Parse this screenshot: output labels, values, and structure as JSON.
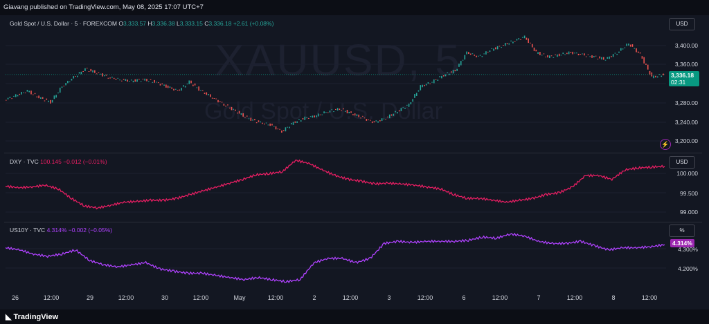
{
  "header": {
    "publisher_text": "Giavang published on TradingView.com, May 08, 2025 17:07 UTC+7"
  },
  "watermark": {
    "symbol": "XAUUSD, 5",
    "description": "Gold Spot / U.S. Dollar"
  },
  "panes": {
    "gold": {
      "title": "Gold Spot / U.S. Dollar · 5 · FOREXCOM",
      "o_label": "O",
      "o_value": "3,333.57",
      "h_label": "H",
      "h_value": "3,336.38",
      "l_label": "L",
      "l_value": "3,333.15",
      "c_label": "C",
      "c_value": "3,336.18",
      "change": "+2.61 (+0.08%)",
      "unit": "USD",
      "last_price": "3,336.18",
      "countdown": "02:31",
      "scale_labels": [
        "3,400.00",
        "3,360.00",
        "3,280.00",
        "3,240.00",
        "3,200.00"
      ]
    },
    "dxy": {
      "title": "DXY · TVC",
      "value": "100.145",
      "change": "−0.012 (−0.01%)",
      "unit": "USD",
      "scale_labels": [
        "100.000",
        "99.500",
        "99.000"
      ]
    },
    "us10y": {
      "title": "US10Y · TVC",
      "value": "4.314%",
      "change": "−0.002 (−0.05%)",
      "unit": "%",
      "last_value": "4.314%",
      "scale_labels": [
        "4.300%",
        "4.200%"
      ]
    }
  },
  "time_axis": [
    "26",
    "12:00",
    "29",
    "12:00",
    "30",
    "12:00",
    "May",
    "12:00",
    "2",
    "12:00",
    "3",
    "12:00",
    "6",
    "12:00",
    "7",
    "12:00",
    "8",
    "12:00"
  ],
  "footer": {
    "brand": "TradingView"
  },
  "colors": {
    "background": "#131722",
    "up": "#26a69a",
    "down": "#ef5350",
    "dxy_line": "#e91e63",
    "us10y_line": "#b042ff",
    "last_price_tag": "#089981"
  },
  "chart_data": [
    {
      "type": "line",
      "title": "Gold Spot / U.S. Dollar · 5 · FOREXCOM",
      "series": [
        {
          "name": "XAUUSD",
          "values": [
            3280,
            3290,
            3300,
            3285,
            3275,
            3310,
            3330,
            3348,
            3340,
            3330,
            3325,
            3322,
            3325,
            3320,
            3310,
            3300,
            3320,
            3300,
            3285,
            3270,
            3255,
            3240,
            3230,
            3225,
            3210,
            3230,
            3240,
            3245,
            3255,
            3260,
            3250,
            3240,
            3230,
            3240,
            3255,
            3270,
            3310,
            3320,
            3335,
            3345,
            3385,
            3375,
            3390,
            3400,
            3410,
            3420,
            3385,
            3375,
            3380,
            3385,
            3380,
            3375,
            3370,
            3385,
            3405,
            3380,
            3330,
            3336.18
          ]
        }
      ],
      "ylim": [
        3180,
        3440
      ]
    },
    {
      "type": "line",
      "title": "DXY · TVC",
      "series": [
        {
          "name": "DXY",
          "values": [
            99.62,
            99.58,
            99.6,
            99.65,
            99.55,
            99.3,
            99.1,
            99.05,
            99.12,
            99.2,
            99.22,
            99.25,
            99.25,
            99.3,
            99.4,
            99.5,
            99.6,
            99.7,
            99.8,
            99.92,
            99.95,
            100.0,
            100.3,
            100.22,
            100.05,
            99.9,
            99.8,
            99.75,
            99.68,
            99.7,
            99.68,
            99.65,
            99.6,
            99.55,
            99.4,
            99.3,
            99.3,
            99.25,
            99.2,
            99.25,
            99.3,
            99.4,
            99.45,
            99.6,
            99.9,
            99.9,
            99.8,
            100.05,
            100.1,
            100.12,
            100.145
          ]
        }
      ],
      "ylim": [
        98.85,
        100.3
      ]
    },
    {
      "type": "line",
      "title": "US10Y · TVC",
      "series": [
        {
          "name": "US10Y",
          "values": [
            4.3,
            4.29,
            4.27,
            4.26,
            4.27,
            4.29,
            4.24,
            4.22,
            4.21,
            4.22,
            4.23,
            4.2,
            4.19,
            4.18,
            4.18,
            4.17,
            4.16,
            4.15,
            4.16,
            4.15,
            4.14,
            4.15,
            4.23,
            4.25,
            4.25,
            4.23,
            4.25,
            4.32,
            4.33,
            4.325,
            4.33,
            4.33,
            4.33,
            4.335,
            4.35,
            4.345,
            4.365,
            4.355,
            4.33,
            4.32,
            4.32,
            4.33,
            4.31,
            4.29,
            4.3,
            4.3,
            4.305,
            4.314
          ]
        }
      ],
      "ylim": [
        4.12,
        4.38
      ]
    }
  ]
}
